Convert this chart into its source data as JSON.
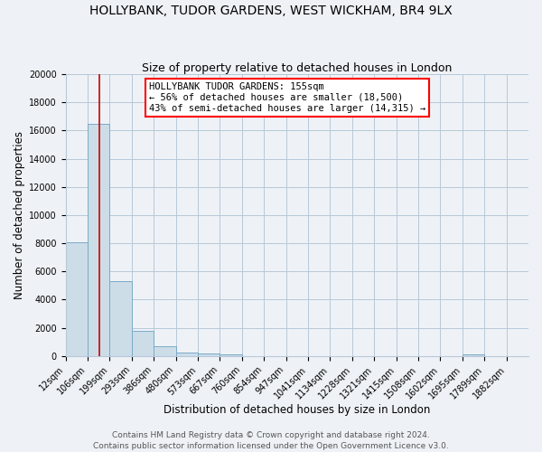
{
  "title": "HOLLYBANK, TUDOR GARDENS, WEST WICKHAM, BR4 9LX",
  "subtitle": "Size of property relative to detached houses in London",
  "xlabel": "Distribution of detached houses by size in London",
  "ylabel": "Number of detached properties",
  "bar_labels": [
    "12sqm",
    "106sqm",
    "199sqm",
    "293sqm",
    "386sqm",
    "480sqm",
    "573sqm",
    "667sqm",
    "760sqm",
    "854sqm",
    "947sqm",
    "1041sqm",
    "1134sqm",
    "1228sqm",
    "1321sqm",
    "1415sqm",
    "1508sqm",
    "1602sqm",
    "1695sqm",
    "1789sqm",
    "1882sqm"
  ],
  "bar_heights": [
    8100,
    16500,
    5300,
    1800,
    700,
    280,
    200,
    130,
    0,
    0,
    0,
    0,
    0,
    0,
    0,
    0,
    0,
    0,
    150,
    0,
    0
  ],
  "bar_color": "#ccdde8",
  "bar_edge_color": "#7aaac8",
  "vline_color": "#cc0000",
  "ylim": [
    0,
    20000
  ],
  "yticks": [
    0,
    2000,
    4000,
    6000,
    8000,
    10000,
    12000,
    14000,
    16000,
    18000,
    20000
  ],
  "annotation_title": "HOLLYBANK TUDOR GARDENS: 155sqm",
  "annotation_line1": "← 56% of detached houses are smaller (18,500)",
  "annotation_line2": "43% of semi-detached houses are larger (14,315) →",
  "footer_line1": "Contains HM Land Registry data © Crown copyright and database right 2024.",
  "footer_line2": "Contains public sector information licensed under the Open Government Licence v3.0.",
  "background_color": "#eef2f6",
  "plot_bg_color": "#eef2f6",
  "grid_color": "#b8c8d8",
  "title_fontsize": 10,
  "subtitle_fontsize": 9,
  "axis_label_fontsize": 8.5,
  "tick_fontsize": 7,
  "footer_fontsize": 6.5,
  "ann_fontsize": 7.5
}
